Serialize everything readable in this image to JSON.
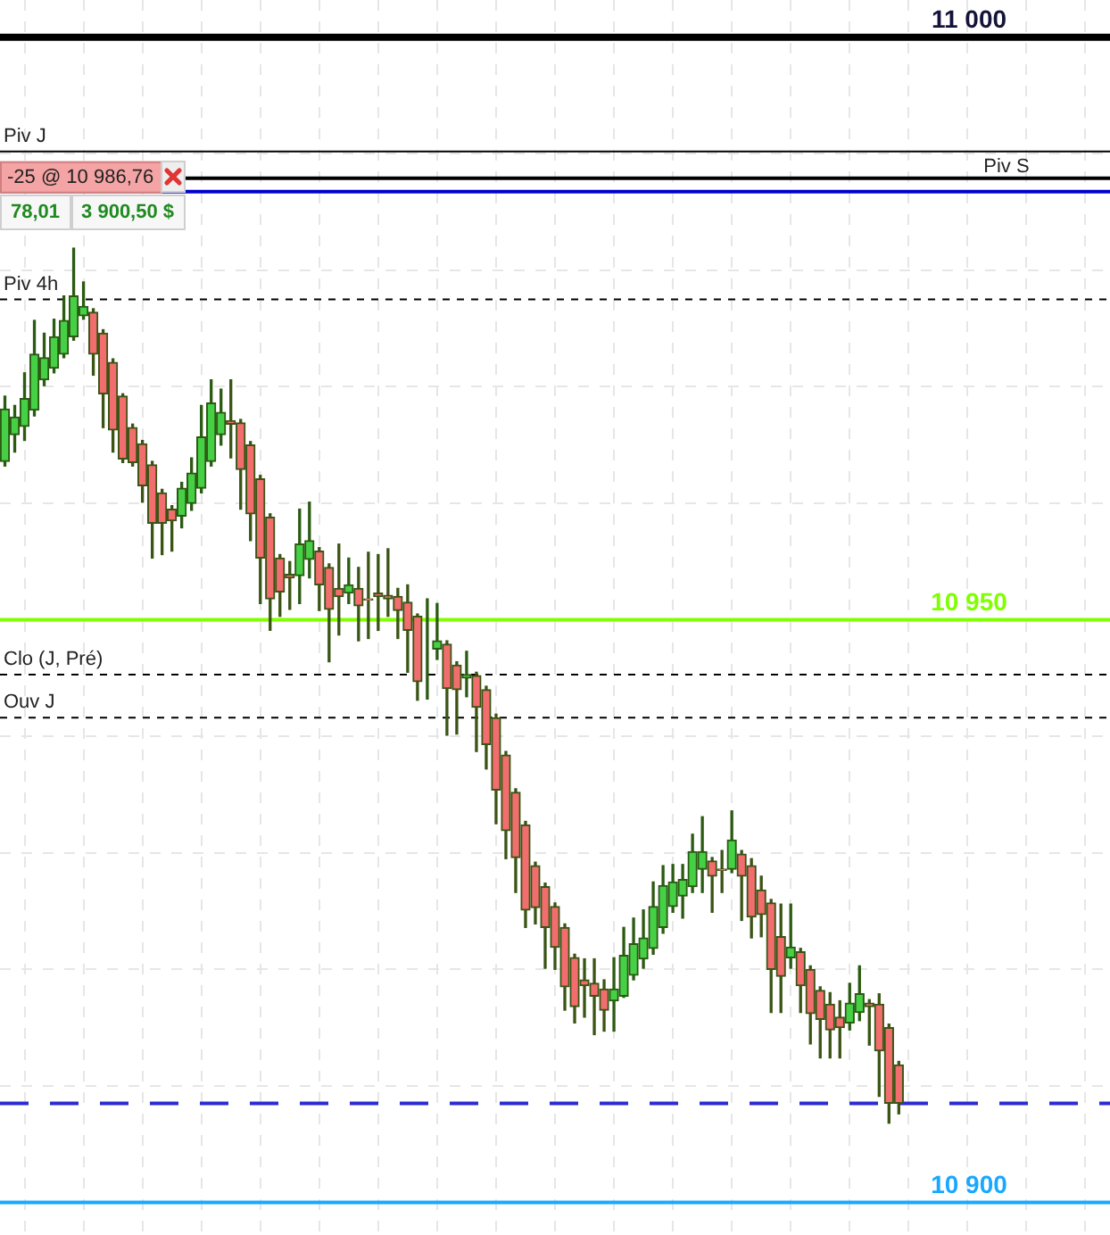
{
  "chart_data": {
    "type": "candlestick",
    "categories": [
      null,
      null,
      null,
      null,
      null,
      null,
      null,
      null,
      null,
      null,
      null,
      null,
      null,
      null,
      null,
      null,
      null,
      null,
      null,
      null,
      null,
      null,
      null,
      null,
      null,
      null,
      null,
      null,
      null,
      null,
      null,
      null,
      null,
      null,
      null,
      null,
      null,
      null,
      null,
      null,
      null,
      null,
      null,
      null,
      null,
      null,
      null,
      null,
      null,
      null,
      null,
      null,
      null,
      null,
      null,
      null,
      null,
      null,
      null,
      null,
      null,
      null,
      null,
      null,
      null,
      null,
      null,
      null,
      null,
      null,
      null,
      null,
      null,
      null,
      null,
      null,
      null,
      null,
      null,
      null,
      null,
      null,
      null,
      null,
      null,
      null,
      null,
      null,
      null,
      null,
      null,
      null,
      null,
      null,
      null,
      null,
      null,
      null,
      null,
      null,
      null,
      null,
      null,
      null,
      null,
      null,
      null,
      null,
      null,
      null,
      null,
      null,
      null
    ],
    "ohlc": [
      [
        10963.6,
        10969.2,
        10963.2,
        10968.1
      ],
      [
        10965.9,
        10968.4,
        10964.4,
        10967.4
      ],
      [
        10966.6,
        10971.2,
        10965.4,
        10969.0
      ],
      [
        10968.0,
        10975.7,
        10967.5,
        10972.8
      ],
      [
        10970.6,
        10974.6,
        10970.1,
        10972.5
      ],
      [
        10971.6,
        10975.8,
        10971.2,
        10974.3
      ],
      [
        10972.8,
        10977.8,
        10972.5,
        10975.7
      ],
      [
        10974.3,
        10981.9,
        10974.0,
        10977.8
      ],
      [
        10976.1,
        10979.0,
        10975.8,
        10976.9
      ],
      [
        10976.4,
        10976.7,
        10971.0,
        10972.8
      ],
      [
        10974.6,
        10974.9,
        10966.5,
        10969.4
      ],
      [
        10972.1,
        10972.4,
        10964.4,
        10966.3
      ],
      [
        10969.2,
        10969.4,
        10963.5,
        10963.8
      ],
      [
        10966.5,
        10966.8,
        10963.2,
        10963.5
      ],
      [
        10965.1,
        10965.4,
        10960.1,
        10961.5
      ],
      [
        10963.3,
        10963.6,
        10955.3,
        10958.3
      ],
      [
        10960.9,
        10961.2,
        10955.6,
        10958.3
      ],
      [
        10959.5,
        10959.8,
        10955.9,
        10958.5
      ],
      [
        10958.9,
        10961.8,
        10957.9,
        10961.3
      ],
      [
        10960.0,
        10963.9,
        10959.4,
        10962.6
      ],
      [
        10961.3,
        10968.4,
        10960.9,
        10965.7
      ],
      [
        10963.6,
        10970.6,
        10963.2,
        10968.6
      ],
      [
        10965.9,
        10969.8,
        10965.0,
        10967.8
      ],
      [
        10967.1,
        10970.6,
        10963.9,
        10966.8
      ],
      [
        10966.9,
        10967.2,
        10959.5,
        10962.9
      ],
      [
        10965.0,
        10965.3,
        10956.8,
        10959.1
      ],
      [
        10962.1,
        10962.4,
        10951.4,
        10955.3
      ],
      [
        10958.8,
        10959.1,
        10949.1,
        10951.8
      ],
      [
        10955.3,
        10955.6,
        10950.3,
        10952.4
      ],
      [
        10953.9,
        10955.0,
        10950.9,
        10953.6
      ],
      [
        10953.8,
        10959.5,
        10951.4,
        10956.5
      ],
      [
        10955.2,
        10960.1,
        10953.6,
        10956.8
      ],
      [
        10955.9,
        10956.2,
        10950.8,
        10953.0
      ],
      [
        10954.5,
        10954.8,
        10946.4,
        10950.9
      ],
      [
        10952.7,
        10956.5,
        10948.7,
        10952.0
      ],
      [
        10952.3,
        10955.3,
        10951.4,
        10953.0
      ],
      [
        10952.7,
        10954.5,
        10948.2,
        10951.2
      ],
      [
        10951.8,
        10955.8,
        10948.4,
        10951.7
      ],
      [
        10952.3,
        10955.6,
        10949.1,
        10952.0
      ],
      [
        10952.1,
        10956.1,
        10950.3,
        10951.8
      ],
      [
        10952.0,
        10952.7,
        10948.4,
        10950.8
      ],
      [
        10951.5,
        10953.0,
        10945.5,
        10949.1
      ],
      [
        10950.3,
        10950.5,
        10943.1,
        10944.7
      ],
      [
        10947.3,
        10951.8,
        10943.2,
        10947.3
      ],
      [
        10947.5,
        10951.4,
        10946.6,
        10948.2
      ],
      [
        10947.9,
        10948.2,
        10940.1,
        10944.1
      ],
      [
        10946.1,
        10946.4,
        10940.2,
        10944.0
      ],
      [
        10945.0,
        10947.3,
        10943.4,
        10945.3
      ],
      [
        10945.2,
        10945.5,
        10938.7,
        10942.5
      ],
      [
        10944.0,
        10944.3,
        10937.2,
        10939.3
      ],
      [
        10941.6,
        10941.9,
        10932.5,
        10935.4
      ],
      [
        10938.4,
        10938.7,
        10929.5,
        10931.9
      ],
      [
        10935.2,
        10935.5,
        10926.6,
        10929.6
      ],
      [
        10932.4,
        10932.7,
        10923.6,
        10925.1
      ],
      [
        10928.9,
        10929.2,
        10923.9,
        10925.3
      ],
      [
        10927.1,
        10927.4,
        10920.1,
        10923.6
      ],
      [
        10925.4,
        10925.7,
        10920.0,
        10921.9
      ],
      [
        10923.6,
        10923.9,
        10916.5,
        10918.5
      ],
      [
        10921.0,
        10921.3,
        10915.4,
        10916.8
      ],
      [
        10919.1,
        10920.9,
        10915.9,
        10918.6
      ],
      [
        10918.8,
        10920.9,
        10914.4,
        10917.7
      ],
      [
        10918.3,
        10919.1,
        10914.7,
        10916.5
      ],
      [
        10917.3,
        10921.0,
        10914.7,
        10918.3
      ],
      [
        10917.7,
        10923.6,
        10917.6,
        10921.2
      ],
      [
        10919.5,
        10924.4,
        10919.1,
        10922.2
      ],
      [
        10920.9,
        10925.1,
        10920.1,
        10922.7
      ],
      [
        10921.8,
        10927.5,
        10921.3,
        10925.4
      ],
      [
        10923.6,
        10928.9,
        10923.1,
        10927.2
      ],
      [
        10925.4,
        10929.0,
        10924.9,
        10927.5
      ],
      [
        10926.3,
        10929.0,
        10924.4,
        10927.7
      ],
      [
        10927.1,
        10931.6,
        10926.6,
        10930.1
      ],
      [
        10928.6,
        10933.1,
        10926.6,
        10930.1
      ],
      [
        10929.3,
        10929.6,
        10924.9,
        10928.0
      ],
      [
        10928.6,
        10930.2,
        10926.6,
        10928.5
      ],
      [
        10928.6,
        10933.6,
        10928.3,
        10931.1
      ],
      [
        10929.9,
        10930.2,
        10924.2,
        10928.0
      ],
      [
        10928.9,
        10929.5,
        10922.7,
        10924.5
      ],
      [
        10926.8,
        10928.0,
        10922.8,
        10924.7
      ],
      [
        10925.7,
        10926.0,
        10916.3,
        10920.0
      ],
      [
        10922.8,
        10925.6,
        10916.3,
        10919.4
      ],
      [
        10921.0,
        10925.6,
        10920.1,
        10921.9
      ],
      [
        10921.5,
        10921.8,
        10916.3,
        10918.6
      ],
      [
        10920.0,
        10920.3,
        10913.6,
        10916.2
      ],
      [
        10918.2,
        10918.5,
        10912.4,
        10915.7
      ],
      [
        10917.0,
        10918.0,
        10912.4,
        10914.8
      ],
      [
        10915.9,
        10917.3,
        10912.4,
        10915.0
      ],
      [
        10915.4,
        10918.8,
        10914.8,
        10917.1
      ],
      [
        10916.3,
        10920.3,
        10915.6,
        10917.9
      ],
      [
        10917.1,
        10917.4,
        10913.5,
        10916.8
      ],
      [
        10917.0,
        10917.9,
        10909.1,
        10913.0
      ],
      [
        10915.0,
        10915.3,
        10906.8,
        10908.5
      ],
      [
        10911.8,
        10912.1,
        10907.6,
        10908.5
      ],
      null,
      null,
      null,
      null,
      null,
      null,
      null,
      null,
      null,
      null,
      null,
      null,
      null,
      null,
      null,
      null,
      null,
      null,
      null,
      null,
      null
    ],
    "ylim": [
      10897.2,
      11003.2
    ],
    "yticks": [
      {
        "value": 10900,
        "label": "10 900"
      },
      {
        "value": 10910,
        "label": null
      },
      {
        "value": 10920,
        "label": null
      },
      {
        "value": 10930,
        "label": null
      },
      {
        "value": 10940,
        "label": null
      },
      {
        "value": 10950,
        "label": "10 950"
      },
      {
        "value": 10960,
        "label": null
      },
      {
        "value": 10970,
        "label": null
      },
      {
        "value": 10980,
        "label": null
      },
      {
        "value": 10990,
        "label": null
      },
      {
        "value": 11000,
        "label": "11 000"
      }
    ],
    "grid": true,
    "tick_labels": "y",
    "ref_lines": [
      {
        "axis": "y",
        "value": 11000,
        "label": null,
        "color": "#000000",
        "line_style": "solid"
      },
      {
        "axis": "y",
        "value": 10990.2,
        "label": "Piv J",
        "color": "#000000",
        "line_style": "solid"
      },
      {
        "axis": "y",
        "value": 10987.9,
        "label": "Piv S",
        "color": "#000000",
        "line_style": "solid"
      },
      {
        "axis": "y",
        "value": 10986.76,
        "label": "-25 @ 10 986,76",
        "color": "#0000cc",
        "line_style": "solid"
      },
      {
        "axis": "y",
        "value": 10977.5,
        "label": "Piv 4h",
        "color": "#000000",
        "line_style": "dashed"
      },
      {
        "axis": "y",
        "value": 10950,
        "label": null,
        "color": "#80ff00",
        "line_style": "solid"
      },
      {
        "axis": "y",
        "value": 10945.3,
        "label": "Clo (J, Pré)",
        "color": "#000000",
        "line_style": "dashed"
      },
      {
        "axis": "y",
        "value": 10941.6,
        "label": "Ouv J",
        "color": "#000000",
        "line_style": "dashed"
      },
      {
        "axis": "y",
        "value": 10908.5,
        "label": null,
        "color": "#2b2bd6",
        "line_style": "dashed"
      },
      {
        "axis": "y",
        "value": 10900,
        "label": null,
        "color": "#19a8ff",
        "line_style": "solid"
      }
    ],
    "annotations": [
      "78,01",
      "3 900,50 $"
    ]
  }
}
